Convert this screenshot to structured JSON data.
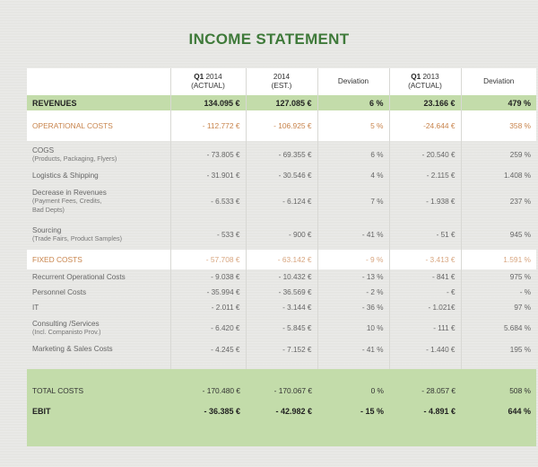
{
  "title": "INCOME STATEMENT",
  "colors": {
    "title": "#3f7a3a",
    "band_green": "#c3dcaa",
    "accent_orange": "#c8844c"
  },
  "header": {
    "col1": {
      "prefix": "Q1",
      "year": "2014",
      "sub": "(ACTUAL)"
    },
    "col2": {
      "line1": "2014",
      "sub": "(EST.)"
    },
    "col3": {
      "line1": "Deviation"
    },
    "col4": {
      "prefix": "Q1",
      "year": "2013",
      "sub": "(ACTUAL)"
    },
    "col5": {
      "line1": "Deviation"
    }
  },
  "revenues": {
    "label": "REVENUES",
    "values": [
      "134.095 €",
      "127.085 €",
      "6 %",
      "23.166 €",
      "479 %"
    ]
  },
  "operational_costs": {
    "label": "OPERATIONAL COSTS",
    "values": [
      "- 112.772 €",
      "- 106.925 €",
      "5 %",
      "-24.644 €",
      "358 %"
    ]
  },
  "op_items": [
    {
      "label": "COGS",
      "sub": "(Products, Packaging, Flyers)",
      "values": [
        "- 73.805 €",
        "- 69.355 €",
        "6 %",
        "- 20.540 €",
        "259 %"
      ]
    },
    {
      "label": "Logistics & Shipping",
      "sub": "",
      "values": [
        "- 31.901 €",
        "- 30.546 €",
        "4 %",
        "- 2.115 €",
        "1.408 %"
      ]
    },
    {
      "label": "Decrease in Revenues",
      "sub": "(Payment Fees, Credits,",
      "sub2": "Bad Depts)",
      "values": [
        "- 6.533 €",
        "- 6.124 €",
        "7 %",
        "- 1.938 €",
        "237 %"
      ]
    },
    {
      "label": "Sourcing",
      "sub": "(Trade Fairs, Product Samples)",
      "values": [
        "- 533 €",
        "- 900 €",
        "- 41 %",
        "- 51 €",
        "945 %"
      ]
    }
  ],
  "fixed_costs": {
    "label": "FIXED COSTS",
    "values": [
      "- 57.708 €",
      "- 63.142 €",
      "- 9 %",
      "- 3.413 €",
      "1.591 %"
    ]
  },
  "fixed_items": [
    {
      "label": "Recurrent Operational Costs",
      "sub": "",
      "values": [
        "- 9.038 €",
        "- 10.432 €",
        "- 13 %",
        "- 841 €",
        "975 %"
      ]
    },
    {
      "label": "Personnel Costs",
      "sub": "",
      "values": [
        "- 35.994 €",
        "- 36.569 €",
        "- 2 %",
        "- €",
        "- %"
      ]
    },
    {
      "label": "IT",
      "sub": "",
      "values": [
        "- 2.011 €",
        "- 3.144 €",
        "- 36 %",
        "- 1.021€",
        "97 %"
      ]
    },
    {
      "label": "Consulting /Services",
      "sub": "(Incl. Companisto Prov.)",
      "values": [
        "- 6.420 €",
        "- 5.845 €",
        "10 %",
        "- 111 €",
        "5.684 %"
      ]
    },
    {
      "label": "Marketing & Sales Costs",
      "sub": "",
      "values": [
        "- 4.245 €",
        "- 7.152 €",
        "- 41 %",
        "- 1.440 €",
        "195 %"
      ]
    }
  ],
  "total_costs": {
    "label": "TOTAL COSTS",
    "values": [
      "- 170.480 €",
      "- 170.067 €",
      "0 %",
      "- 28.057 €",
      "508 %"
    ]
  },
  "ebit": {
    "label": "EBIT",
    "values": [
      "- 36.385 €",
      "- 42.982 €",
      "- 15 %",
      "- 4.891 €",
      "644 %"
    ]
  }
}
